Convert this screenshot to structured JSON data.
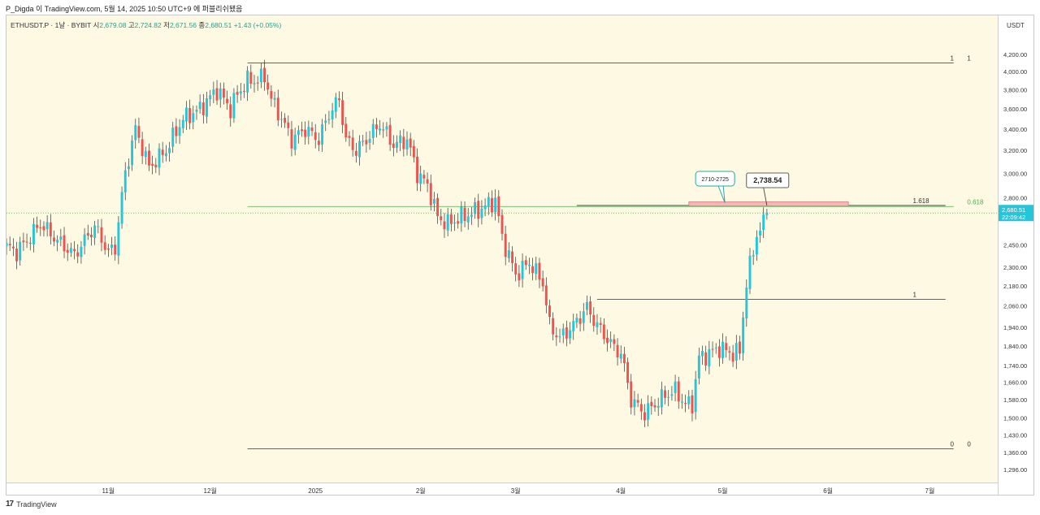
{
  "header": {
    "caption": "P_Digda 이 TradingView.com, 5월 14, 2025 10:50 UTC+9 에 퍼블리쉬됐음"
  },
  "symbol": {
    "name": "ETHUSDT.P · 1날 · BYBIT",
    "o_label": "시",
    "o_value": "2,679.08",
    "h_label": "고",
    "h_value": "2,724.82",
    "l_label": "저",
    "l_value": "2,671.56",
    "c_label": "종",
    "c_value": "2,680.51",
    "change": "+1.43 (+0.05%)"
  },
  "price_axis": {
    "unit": "USDT",
    "last_price": "2,680.51",
    "countdown": "22:09:42"
  },
  "footer": {
    "brand": "TradingView",
    "logo_text": "17"
  },
  "colors": {
    "up": "#26c6da",
    "down": "#ef5350",
    "background": "#fdf9e2",
    "fib_line": "#333333",
    "fib_green": "#4caf50",
    "zone_fill": "#f4b6b6"
  },
  "chart_data": {
    "type": "candlestick",
    "title": "ETHUSDT.P · 1날 · BYBIT",
    "ylabel": "USDT",
    "yscale": "log",
    "ylim": [
      1270,
      4500
    ],
    "y_ticks": [
      4200,
      4000,
      3800,
      3600,
      3400,
      3200,
      3000,
      2800,
      2450,
      2300,
      2180,
      2060,
      1940,
      1840,
      1740,
      1660,
      1580,
      1500,
      1430,
      1360,
      1296
    ],
    "y_tick_labels": [
      "4,200.00",
      "4,000.00",
      "3,800.00",
      "3,600.00",
      "3,400.00",
      "3,200.00",
      "3,000.00",
      "2,800.00",
      "2,450.00",
      "2,300.00",
      "2,180.00",
      "2,060.00",
      "1,940.00",
      "1,840.00",
      "1,740.00",
      "1,660.00",
      "1,580.00",
      "1,500.00",
      "1,430.00",
      "1,360.00",
      "1,296.00"
    ],
    "x_range_days": [
      0,
      292
    ],
    "x_ticks": [
      {
        "day": 30,
        "label": "11월"
      },
      {
        "day": 60,
        "label": "12월"
      },
      {
        "day": 91,
        "label": "2025"
      },
      {
        "day": 122,
        "label": "2월"
      },
      {
        "day": 150,
        "label": "3월"
      },
      {
        "day": 181,
        "label": "4월"
      },
      {
        "day": 211,
        "label": "5월"
      },
      {
        "day": 242,
        "label": "6월"
      },
      {
        "day": 272,
        "label": "7월"
      }
    ],
    "anchors": [
      [
        0,
        2440
      ],
      [
        3,
        2400
      ],
      [
        6,
        2480
      ],
      [
        10,
        2600
      ],
      [
        15,
        2480
      ],
      [
        20,
        2380
      ],
      [
        26,
        2580
      ],
      [
        30,
        2400
      ],
      [
        32,
        2430
      ],
      [
        35,
        3000
      ],
      [
        38,
        3400
      ],
      [
        42,
        3050
      ],
      [
        47,
        3200
      ],
      [
        52,
        3500
      ],
      [
        57,
        3600
      ],
      [
        62,
        3800
      ],
      [
        66,
        3600
      ],
      [
        68,
        3750
      ],
      [
        71,
        3900
      ],
      [
        74,
        3900
      ],
      [
        76,
        3950
      ],
      [
        78,
        3700
      ],
      [
        81,
        3500
      ],
      [
        84,
        3300
      ],
      [
        88,
        3400
      ],
      [
        92,
        3300
      ],
      [
        95,
        3550
      ],
      [
        98,
        3700
      ],
      [
        100,
        3300
      ],
      [
        103,
        3200
      ],
      [
        106,
        3300
      ],
      [
        110,
        3450
      ],
      [
        114,
        3250
      ],
      [
        118,
        3300
      ],
      [
        121,
        3000
      ],
      [
        124,
        2900
      ],
      [
        127,
        2650
      ],
      [
        130,
        2600
      ],
      [
        134,
        2650
      ],
      [
        139,
        2700
      ],
      [
        144,
        2780
      ],
      [
        146,
        2500
      ],
      [
        150,
        2250
      ],
      [
        154,
        2330
      ],
      [
        158,
        2200
      ],
      [
        160,
        1950
      ],
      [
        163,
        1880
      ],
      [
        167,
        1950
      ],
      [
        171,
        2050
      ],
      [
        174,
        1950
      ],
      [
        178,
        1850
      ],
      [
        181,
        1800
      ],
      [
        184,
        1580
      ],
      [
        188,
        1520
      ],
      [
        191,
        1560
      ],
      [
        194,
        1600
      ],
      [
        197,
        1620
      ],
      [
        200,
        1560
      ],
      [
        202,
        1560
      ],
      [
        204,
        1780
      ],
      [
        207,
        1800
      ],
      [
        210,
        1830
      ],
      [
        214,
        1800
      ],
      [
        216,
        1810
      ],
      [
        218,
        2200
      ],
      [
        221,
        2520
      ],
      [
        223,
        2600
      ],
      [
        224,
        2680
      ]
    ],
    "last_close": 2680.51,
    "fib_levels": [
      {
        "ratio": "1",
        "price": 4100
      },
      {
        "ratio": "1.618",
        "price": 2738.54
      },
      {
        "ratio": "1",
        "price": 2100
      },
      {
        "ratio": "0",
        "price": 1375
      }
    ],
    "fib_right_labels": [
      {
        "label": "1",
        "price": 4100
      },
      {
        "label": "0.618",
        "price": 2730
      },
      {
        "label": "0",
        "price": 1375
      }
    ],
    "resistance_zone": {
      "label": "2710-2725",
      "low": 2710,
      "high": 2725
    },
    "callout": {
      "label": "2,738.54",
      "price": 2738.54
    }
  }
}
